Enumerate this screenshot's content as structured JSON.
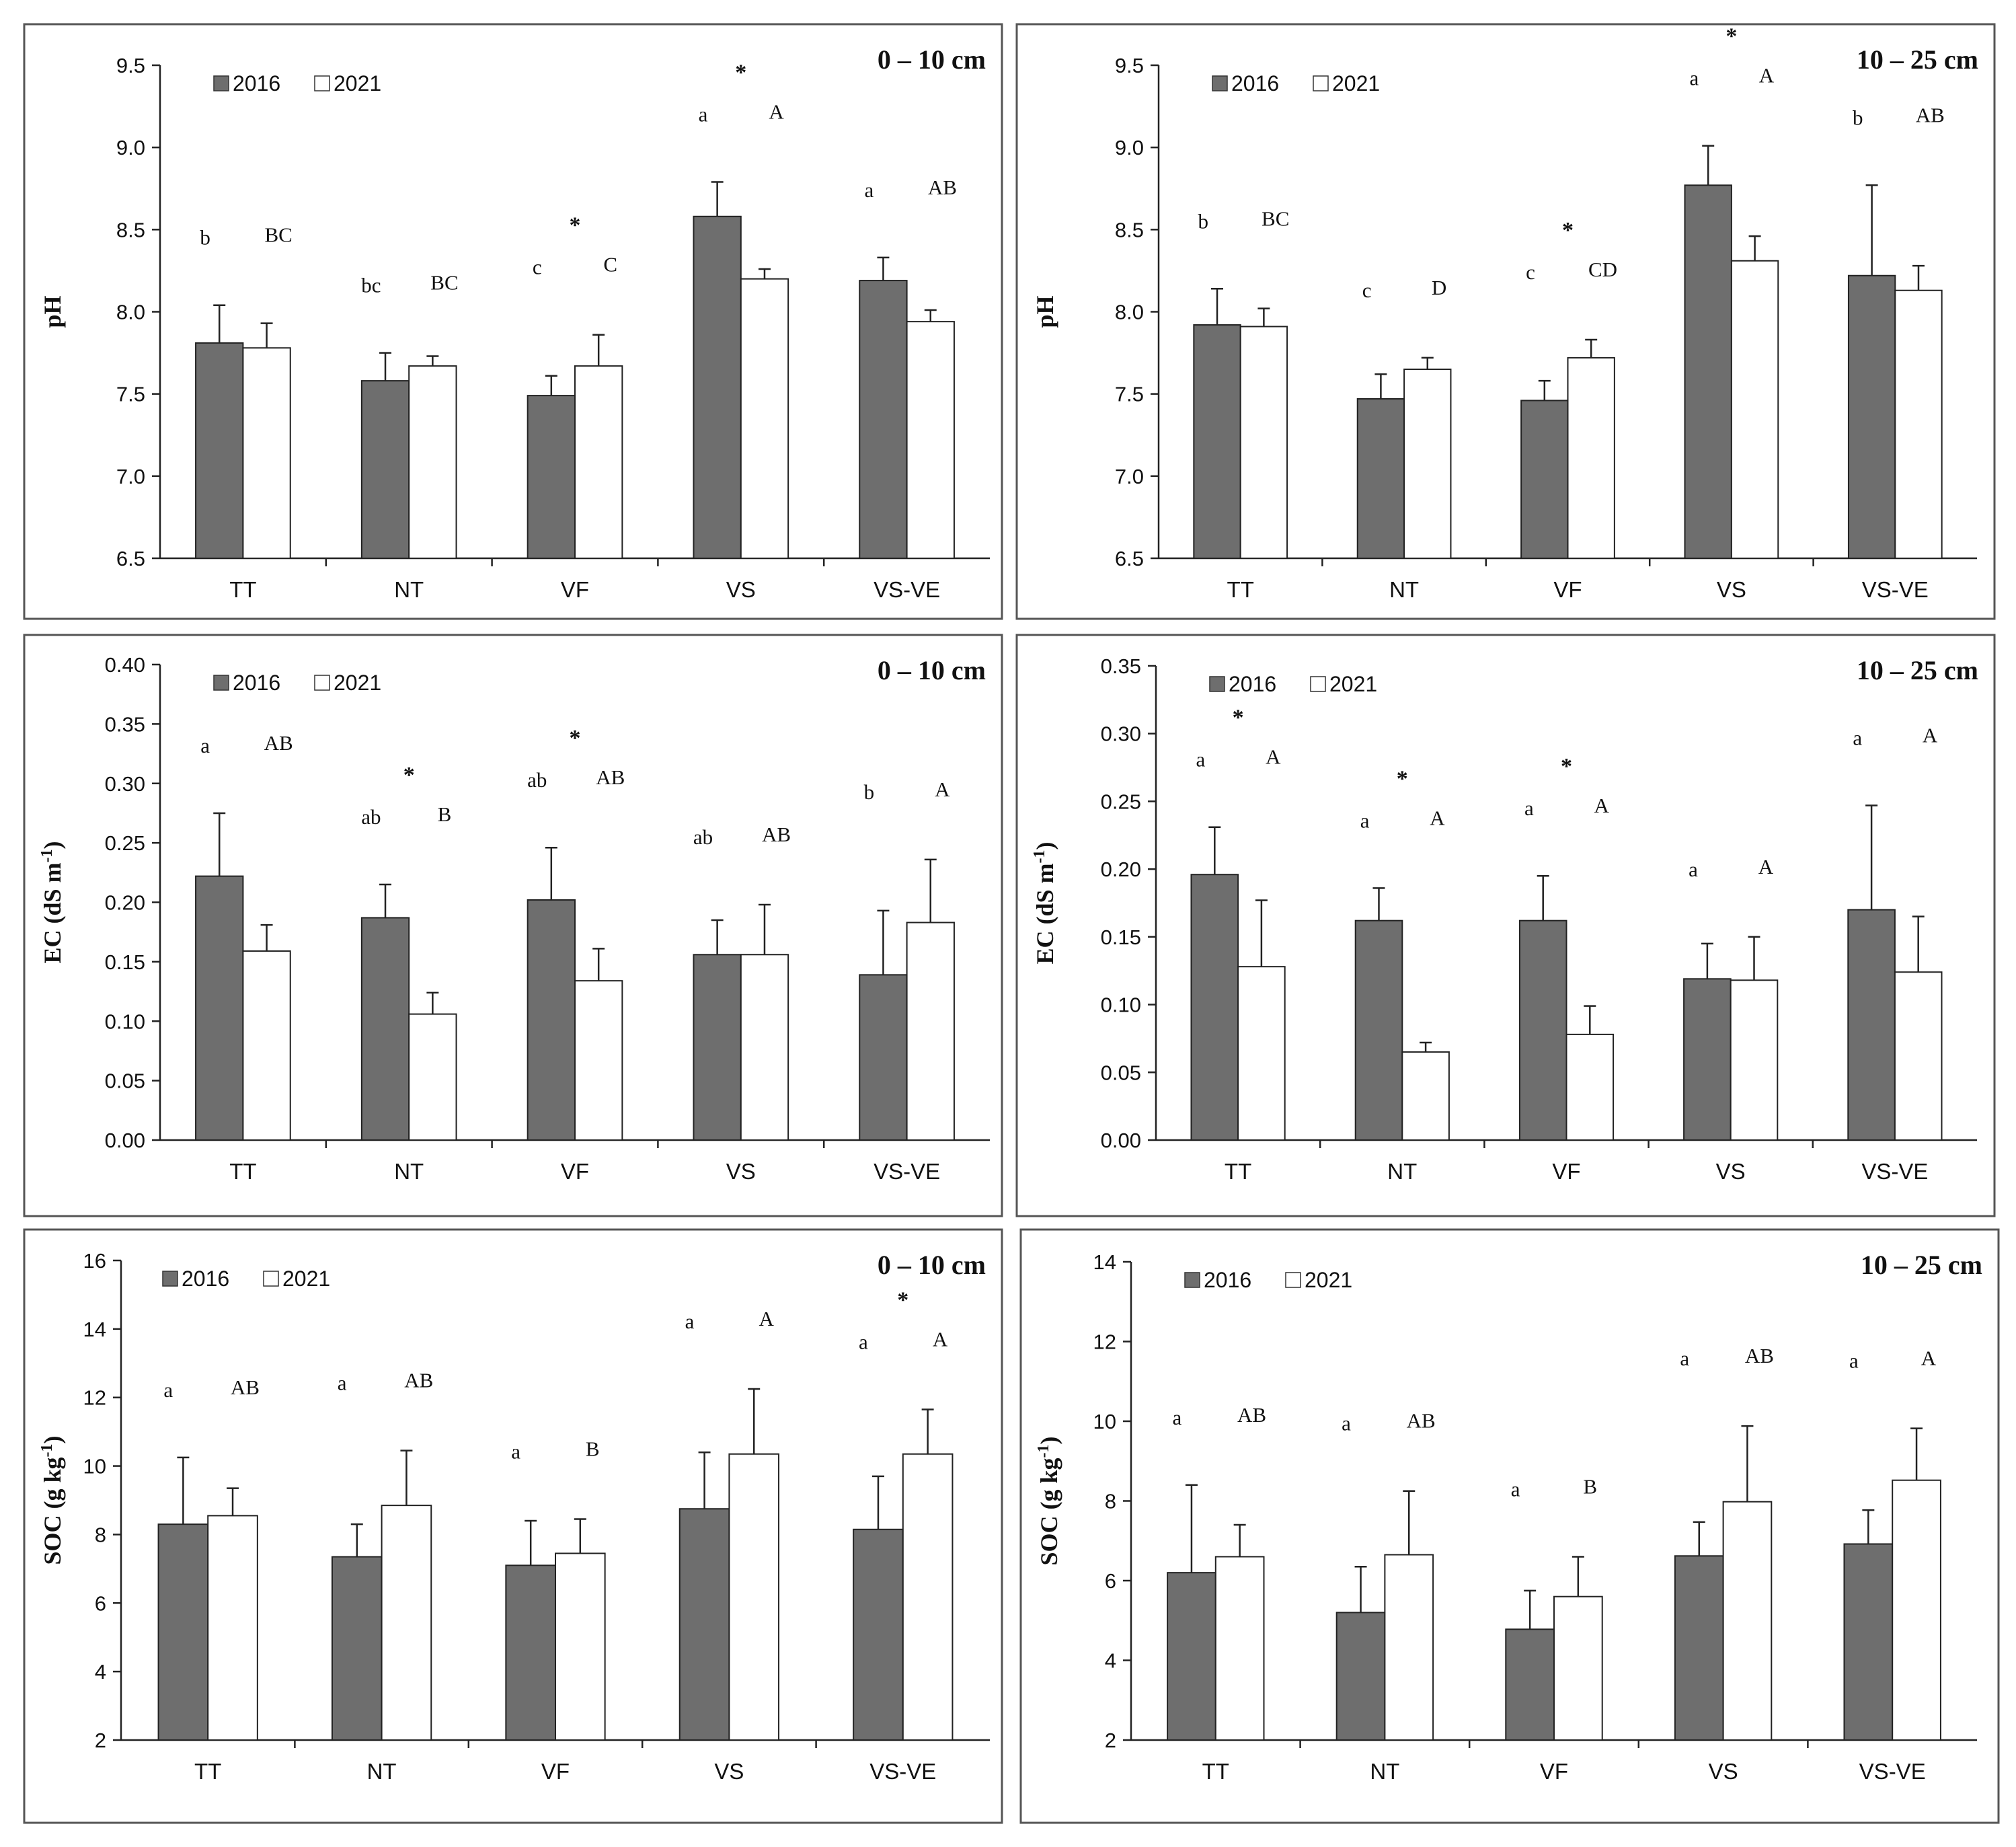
{
  "chart_data": [
    {
      "type": "bar",
      "panel": "pH, 0-10 cm",
      "title": "0 – 10 cm",
      "ylabel": "pH",
      "ylim": [
        6.5,
        9.5
      ],
      "yticks": [
        "6.5",
        "7.0",
        "7.5",
        "8.0",
        "8.5",
        "9.0",
        "9.5"
      ],
      "categories": [
        "TT",
        "NT",
        "VF",
        "VS",
        "VS-VE"
      ],
      "legend": [
        "2016",
        "2021"
      ],
      "legend_position": "top-left",
      "series": [
        {
          "name": "2016",
          "values": [
            7.81,
            7.58,
            7.49,
            8.58,
            8.19
          ],
          "errors": [
            0.23,
            0.17,
            0.12,
            0.21,
            0.14
          ]
        },
        {
          "name": "2021",
          "values": [
            7.78,
            7.67,
            7.67,
            8.2,
            7.94
          ],
          "errors": [
            0.15,
            0.06,
            0.19,
            0.06,
            0.07
          ]
        }
      ],
      "letters_2016": [
        "b",
        "bc",
        "c",
        "a",
        "a"
      ],
      "letters_2021": [
        "BC",
        "BC",
        "C",
        "A",
        "AB"
      ],
      "significant": [
        false,
        false,
        true,
        true,
        false
      ],
      "sig_symbol": "*"
    },
    {
      "type": "bar",
      "panel": "pH, 10-25 cm",
      "title": "10 – 25 cm",
      "ylabel": "pH",
      "ylim": [
        6.5,
        9.5
      ],
      "yticks": [
        "6.5",
        "7.0",
        "7.5",
        "8.0",
        "8.5",
        "9.0",
        "9.5"
      ],
      "categories": [
        "TT",
        "NT",
        "VF",
        "VS",
        "VS-VE"
      ],
      "legend": [
        "2016",
        "2021"
      ],
      "legend_position": "top-left",
      "series": [
        {
          "name": "2016",
          "values": [
            7.92,
            7.47,
            7.46,
            8.77,
            8.22
          ],
          "errors": [
            0.22,
            0.15,
            0.12,
            0.24,
            0.55
          ]
        },
        {
          "name": "2021",
          "values": [
            7.91,
            7.65,
            7.72,
            8.31,
            8.13
          ],
          "errors": [
            0.11,
            0.07,
            0.11,
            0.15,
            0.15
          ]
        }
      ],
      "letters_2016": [
        "b",
        "c",
        "c",
        "a",
        "b"
      ],
      "letters_2021": [
        "BC",
        "D",
        "CD",
        "A",
        "AB"
      ],
      "significant": [
        false,
        false,
        true,
        true,
        false
      ],
      "sig_symbol": "*"
    },
    {
      "type": "bar",
      "panel": "EC, 0-10 cm",
      "title": "0 – 10 cm",
      "ylabel": "EC (dS m",
      "ylabel_sup": "-1",
      "ylabel_close": ")",
      "ylim": [
        0,
        0.4
      ],
      "yticks": [
        "0.00",
        "0.05",
        "0.10",
        "0.15",
        "0.20",
        "0.25",
        "0.30",
        "0.35",
        "0.40"
      ],
      "categories": [
        "TT",
        "NT",
        "VF",
        "VS",
        "VS-VE"
      ],
      "legend": [
        "2016",
        "2021"
      ],
      "legend_position": "top-left",
      "series": [
        {
          "name": "2016",
          "values": [
            0.222,
            0.187,
            0.202,
            0.156,
            0.139
          ],
          "errors": [
            0.053,
            0.028,
            0.044,
            0.029,
            0.054
          ]
        },
        {
          "name": "2021",
          "values": [
            0.159,
            0.106,
            0.134,
            0.156,
            0.183
          ],
          "errors": [
            0.022,
            0.018,
            0.027,
            0.042,
            0.053
          ]
        }
      ],
      "letters_2016": [
        "a",
        "ab",
        "ab",
        "ab",
        "b"
      ],
      "letters_2021": [
        "AB",
        "B",
        "AB",
        "AB",
        "A"
      ],
      "significant": [
        false,
        true,
        true,
        false,
        false
      ],
      "sig_symbol": "*"
    },
    {
      "type": "bar",
      "panel": "EC, 10-25 cm",
      "title": "10 – 25 cm",
      "ylabel": "EC (dS m",
      "ylabel_sup": "-1",
      "ylabel_close": ")",
      "ylim": [
        0,
        0.35
      ],
      "yticks": [
        "0.00",
        "0.05",
        "0.10",
        "0.15",
        "0.20",
        "0.25",
        "0.30",
        "0.35"
      ],
      "categories": [
        "TT",
        "NT",
        "VF",
        "VS",
        "VS-VE"
      ],
      "legend": [
        "2016",
        "2021"
      ],
      "legend_position": "top-left",
      "series": [
        {
          "name": "2016",
          "values": [
            0.196,
            0.162,
            0.162,
            0.119,
            0.17
          ],
          "errors": [
            0.035,
            0.024,
            0.033,
            0.026,
            0.077
          ]
        },
        {
          "name": "2021",
          "values": [
            0.128,
            0.065,
            0.078,
            0.118,
            0.124
          ],
          "errors": [
            0.049,
            0.007,
            0.021,
            0.032,
            0.041
          ]
        }
      ],
      "letters_2016": [
        "a",
        "a",
        "a",
        "a",
        "a"
      ],
      "letters_2021": [
        "A",
        "A",
        "A",
        "A",
        "A"
      ],
      "significant": [
        true,
        true,
        true,
        false,
        false
      ],
      "sig_symbol": "*"
    },
    {
      "type": "bar",
      "panel": "SOC, 0-10 cm",
      "title": "0 – 10 cm",
      "ylabel": "SOC (g kg",
      "ylabel_sup": "-1",
      "ylabel_close": ")",
      "ylim": [
        2,
        16
      ],
      "yticks": [
        "2",
        "4",
        "6",
        "8",
        "10",
        "12",
        "14",
        "16"
      ],
      "categories": [
        "TT",
        "NT",
        "VF",
        "VS",
        "VS-VE"
      ],
      "legend": [
        "2016",
        "2021"
      ],
      "legend_position": "top-left",
      "series": [
        {
          "name": "2016",
          "values": [
            8.3,
            7.35,
            7.1,
            8.75,
            8.15
          ],
          "errors": [
            1.95,
            0.95,
            1.3,
            1.65,
            1.55
          ]
        },
        {
          "name": "2021",
          "values": [
            8.55,
            8.85,
            7.45,
            10.35,
            10.35
          ],
          "errors": [
            0.8,
            1.6,
            1.0,
            1.9,
            1.3
          ]
        }
      ],
      "letters_2016": [
        "a",
        "a",
        "a",
        "a",
        "a"
      ],
      "letters_2021": [
        "AB",
        "AB",
        "B",
        "A",
        "A"
      ],
      "significant": [
        false,
        false,
        false,
        false,
        true
      ],
      "sig_symbol": "*"
    },
    {
      "type": "bar",
      "panel": "SOC, 10-25 cm",
      "title": "10 – 25 cm",
      "ylabel": "SOC (g kg",
      "ylabel_sup": "-1",
      "ylabel_close": ")",
      "ylim": [
        2,
        14
      ],
      "yticks": [
        "2",
        "4",
        "6",
        "8",
        "10",
        "12",
        "14"
      ],
      "categories": [
        "TT",
        "NT",
        "VF",
        "VS",
        "VS-VE"
      ],
      "legend": [
        "2016",
        "2021"
      ],
      "legend_position": "top-left",
      "series": [
        {
          "name": "2016",
          "values": [
            6.2,
            5.2,
            4.78,
            6.62,
            6.92
          ],
          "errors": [
            2.2,
            1.15,
            0.97,
            0.85,
            0.85
          ]
        },
        {
          "name": "2021",
          "values": [
            6.6,
            6.65,
            5.6,
            7.98,
            8.52
          ],
          "errors": [
            0.8,
            1.6,
            1.0,
            1.9,
            1.3
          ]
        }
      ],
      "letters_2016": [
        "a",
        "a",
        "a",
        "a",
        "a"
      ],
      "letters_2021": [
        "AB",
        "AB",
        "B",
        "AB",
        "A"
      ],
      "significant": [
        false,
        false,
        false,
        false,
        false
      ],
      "sig_symbol": "*"
    }
  ],
  "colors": {
    "bar_2016": "#6e6e6e",
    "bar_2021": "#ffffff",
    "axis": "#222222",
    "frame": "#555555"
  }
}
